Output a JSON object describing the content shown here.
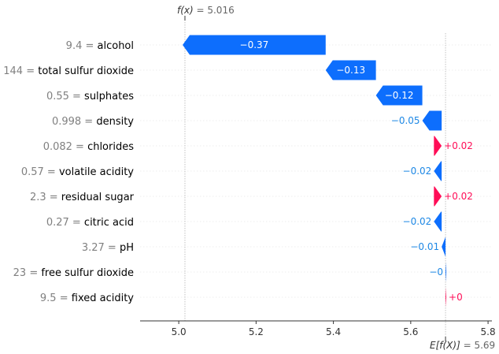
{
  "chart_data": {
    "type": "waterfall",
    "title": "",
    "fx": {
      "label": "f(x)",
      "value": "5.016",
      "x": 5.016
    },
    "efx": {
      "label": "E[f(X)]",
      "value": "5.69",
      "x": 5.69
    },
    "xlim": [
      4.9,
      5.81
    ],
    "xticks": [
      "5.0",
      "5.2",
      "5.4",
      "5.6",
      "5.8"
    ],
    "xtick_values": [
      5.0,
      5.2,
      5.4,
      5.6,
      5.8
    ],
    "features": [
      {
        "value": "9.4",
        "name": "alcohol",
        "shap": -0.37,
        "label": "−0.37"
      },
      {
        "value": "144",
        "name": "total sulfur dioxide",
        "shap": -0.13,
        "label": "−0.13"
      },
      {
        "value": "0.55",
        "name": "sulphates",
        "shap": -0.12,
        "label": "−0.12"
      },
      {
        "value": "0.998",
        "name": "density",
        "shap": -0.05,
        "label": "−0.05"
      },
      {
        "value": "0.082",
        "name": "chlorides",
        "shap": 0.02,
        "label": "+0.02"
      },
      {
        "value": "0.57",
        "name": "volatile acidity",
        "shap": -0.02,
        "label": "−0.02"
      },
      {
        "value": "2.3",
        "name": "residual sugar",
        "shap": 0.02,
        "label": "+0.02"
      },
      {
        "value": "0.27",
        "name": "citric acid",
        "shap": -0.02,
        "label": "−0.02"
      },
      {
        "value": "3.27",
        "name": "pH",
        "shap": -0.01,
        "label": "−0.01"
      },
      {
        "value": "23",
        "name": "free sulfur dioxide",
        "shap": -0.002,
        "label": "−0"
      },
      {
        "value": "9.5",
        "name": "fixed acidity",
        "shap": 0.002,
        "label": "+0"
      }
    ]
  },
  "colors": {
    "positive": "#ff0d57",
    "negative": "#1e88e5",
    "negative_bar": "#0d6efd"
  }
}
